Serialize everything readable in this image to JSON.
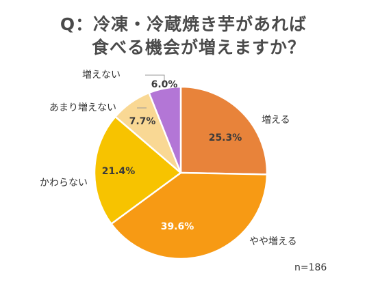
{
  "title_lines": [
    "Q：冷凍・冷蔵焼き芋があれば",
    "食べる機会が増えますか？"
  ],
  "note": "n=186",
  "chart_data": {
    "type": "pie",
    "title": "Q：冷凍・冷蔵焼き芋があれば 食べる機会が増えますか？",
    "start_angle_deg": 0,
    "direction": "clockwise",
    "slices": [
      {
        "label": "増える",
        "value": 25.3,
        "display": "25.3%",
        "color": "#E8833A"
      },
      {
        "label": "やや増える",
        "value": 39.6,
        "display": "39.6%",
        "color": "#F79A14"
      },
      {
        "label": "かわらない",
        "value": 21.4,
        "display": "21.4%",
        "color": "#F7C300"
      },
      {
        "label": "あまり増えない",
        "value": 7.7,
        "display": "7.7%",
        "color": "#F9D894"
      },
      {
        "label": "増えない",
        "value": 6.0,
        "display": "6.0%",
        "color": "#B376D6"
      }
    ],
    "legend": "none",
    "slice_border_color": "#ffffff"
  }
}
